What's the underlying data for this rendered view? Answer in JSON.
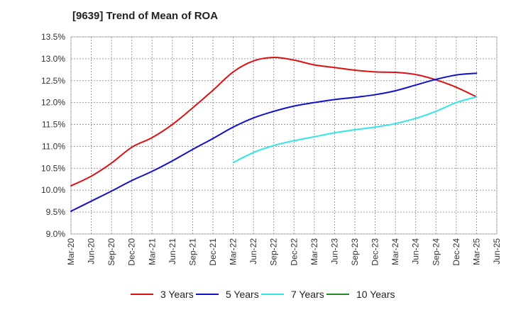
{
  "chart_data": {
    "type": "line",
    "title": "[9639]  Trend of Mean of ROA",
    "xlabel": "",
    "ylabel": "",
    "x": [
      "Mar-20",
      "Jun-20",
      "Sep-20",
      "Dec-20",
      "Mar-21",
      "Jun-21",
      "Sep-21",
      "Dec-21",
      "Mar-22",
      "Jun-22",
      "Sep-22",
      "Dec-22",
      "Mar-23",
      "Jun-23",
      "Sep-23",
      "Dec-23",
      "Mar-24",
      "Jun-24",
      "Sep-24",
      "Dec-24",
      "Mar-25",
      "Jun-25"
    ],
    "ylim": [
      9.0,
      13.5
    ],
    "yticks": [
      "9.0%",
      "9.5%",
      "10.0%",
      "10.5%",
      "11.0%",
      "11.5%",
      "12.0%",
      "12.5%",
      "13.0%",
      "13.5%"
    ],
    "ytick_values": [
      9.0,
      9.5,
      10.0,
      10.5,
      11.0,
      11.5,
      12.0,
      12.5,
      13.0,
      13.5
    ],
    "grid": true,
    "legend_position": "bottom",
    "series": [
      {
        "name": "3 Years",
        "color": "#dd1111",
        "values": [
          10.1,
          10.32,
          10.62,
          10.98,
          11.2,
          11.5,
          11.88,
          12.28,
          12.7,
          12.95,
          13.03,
          12.97,
          12.86,
          12.8,
          12.74,
          12.7,
          12.69,
          12.64,
          12.52,
          12.35,
          12.13,
          null
        ]
      },
      {
        "name": "5 Years",
        "color": "#1111cc",
        "values": [
          9.52,
          9.75,
          9.98,
          10.22,
          10.43,
          10.67,
          10.93,
          11.18,
          11.44,
          11.65,
          11.8,
          11.92,
          12.0,
          12.07,
          12.12,
          12.18,
          12.27,
          12.4,
          12.53,
          12.63,
          12.67,
          null
        ]
      },
      {
        "name": "7 Years",
        "color": "#33e6e6",
        "values": [
          null,
          null,
          null,
          null,
          null,
          null,
          null,
          null,
          10.63,
          10.86,
          11.02,
          11.13,
          11.22,
          11.31,
          11.38,
          11.44,
          11.52,
          11.64,
          11.8,
          12.0,
          12.13,
          null
        ]
      },
      {
        "name": "10 Years",
        "color": "#228b22",
        "values": [
          null,
          null,
          null,
          null,
          null,
          null,
          null,
          null,
          null,
          null,
          null,
          null,
          null,
          null,
          null,
          null,
          null,
          null,
          null,
          null,
          null,
          null
        ]
      }
    ]
  }
}
